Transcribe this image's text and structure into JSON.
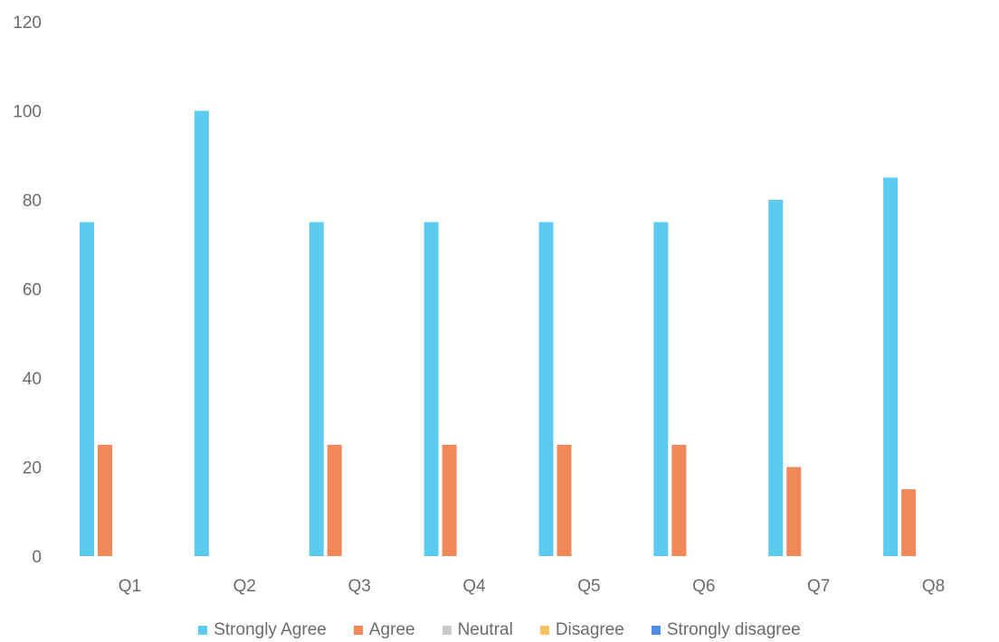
{
  "chart_data": {
    "type": "bar",
    "categories": [
      "Q1",
      "Q2",
      "Q3",
      "Q4",
      "Q5",
      "Q6",
      "Q7",
      "Q8"
    ],
    "series": [
      {
        "name": "Strongly Agree",
        "color": "#5ccbf0",
        "values": [
          75,
          100,
          75,
          75,
          75,
          75,
          80,
          85
        ]
      },
      {
        "name": "Agree",
        "color": "#f0885a",
        "values": [
          25,
          0,
          25,
          25,
          25,
          25,
          20,
          15
        ]
      },
      {
        "name": "Neutral",
        "color": "#c9c9c9",
        "values": [
          0,
          0,
          0,
          0,
          0,
          0,
          0,
          0
        ]
      },
      {
        "name": "Disagree",
        "color": "#f7c35e",
        "values": [
          0,
          0,
          0,
          0,
          0,
          0,
          0,
          0
        ]
      },
      {
        "name": "Strongly disagree",
        "color": "#4f8ee8",
        "values": [
          0,
          0,
          0,
          0,
          0,
          0,
          0,
          0
        ]
      }
    ],
    "yticks": [
      0,
      20,
      40,
      60,
      80,
      100,
      120
    ],
    "ylim": [
      0,
      120
    ],
    "title": "",
    "xlabel": "",
    "ylabel": "",
    "grid": false,
    "legend_position": "bottom"
  }
}
